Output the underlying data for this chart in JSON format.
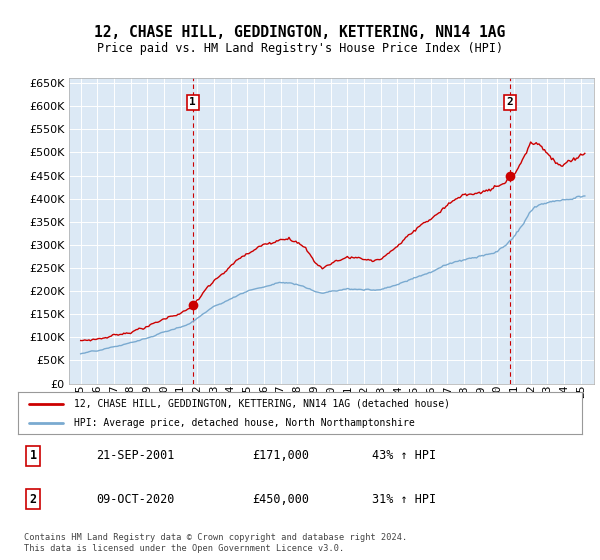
{
  "title": "12, CHASE HILL, GEDDINGTON, KETTERING, NN14 1AG",
  "subtitle": "Price paid vs. HM Land Registry's House Price Index (HPI)",
  "background_color": "#dce9f5",
  "plot_bg_color": "#dce9f5",
  "grid_color": "#ffffff",
  "sale1_date": 2001.72,
  "sale1_price": 171000,
  "sale2_date": 2020.77,
  "sale2_price": 450000,
  "legend_label_red": "12, CHASE HILL, GEDDINGTON, KETTERING, NN14 1AG (detached house)",
  "legend_label_blue": "HPI: Average price, detached house, North Northamptonshire",
  "table_row1": [
    "1",
    "21-SEP-2001",
    "£171,000",
    "43% ↑ HPI"
  ],
  "table_row2": [
    "2",
    "09-OCT-2020",
    "£450,000",
    "31% ↑ HPI"
  ],
  "footer": "Contains HM Land Registry data © Crown copyright and database right 2024.\nThis data is licensed under the Open Government Licence v3.0.",
  "ylim": [
    0,
    660000
  ],
  "yticks": [
    0,
    50000,
    100000,
    150000,
    200000,
    250000,
    300000,
    350000,
    400000,
    450000,
    500000,
    550000,
    600000,
    650000
  ],
  "red_line_color": "#cc0000",
  "blue_line_color": "#7aaad0",
  "dashed_line_color": "#cc0000",
  "box_color": "#cc0000",
  "years_hpi": [
    1995,
    1995.5,
    1996,
    1996.5,
    1997,
    1997.5,
    1998,
    1998.5,
    1999,
    1999.5,
    2000,
    2000.5,
    2001,
    2001.5,
    2002,
    2002.5,
    2003,
    2003.5,
    2004,
    2004.5,
    2005,
    2005.5,
    2006,
    2006.5,
    2007,
    2007.5,
    2008,
    2008.5,
    2009,
    2009.5,
    2010,
    2010.5,
    2011,
    2011.5,
    2012,
    2012.5,
    2013,
    2013.5,
    2014,
    2014.5,
    2015,
    2015.5,
    2016,
    2016.5,
    2017,
    2017.5,
    2018,
    2018.5,
    2019,
    2019.5,
    2020,
    2020.5,
    2021,
    2021.5,
    2022,
    2022.5,
    2023,
    2023.5,
    2024,
    2024.5,
    2025
  ],
  "hpi_base": [
    65000,
    67000,
    69000,
    72000,
    76000,
    80000,
    85000,
    90000,
    95000,
    100000,
    107000,
    113000,
    118000,
    125000,
    138000,
    152000,
    163000,
    172000,
    183000,
    193000,
    200000,
    206000,
    211000,
    217000,
    223000,
    222000,
    218000,
    212000,
    205000,
    200000,
    204000,
    207000,
    210000,
    209000,
    207000,
    207000,
    210000,
    216000,
    222000,
    230000,
    238000,
    245000,
    252000,
    260000,
    268000,
    274000,
    278000,
    281000,
    284000,
    288000,
    293000,
    305000,
    323000,
    347000,
    375000,
    390000,
    395000,
    398000,
    400000,
    403000,
    408000
  ],
  "red_base": [
    95000,
    97000,
    100000,
    104000,
    109000,
    114000,
    120000,
    127000,
    133000,
    140000,
    149000,
    158000,
    165000,
    171000,
    192000,
    213000,
    230000,
    245000,
    262000,
    277000,
    288000,
    297000,
    307000,
    316000,
    327000,
    335000,
    325000,
    308000,
    280000,
    265000,
    275000,
    283000,
    290000,
    290000,
    288000,
    285000,
    290000,
    302000,
    318000,
    335000,
    350000,
    365000,
    378000,
    392000,
    408000,
    420000,
    428000,
    435000,
    440000,
    445000,
    450000,
    460000,
    478000,
    510000,
    550000,
    548000,
    530000,
    510000,
    505000,
    515000,
    530000
  ]
}
